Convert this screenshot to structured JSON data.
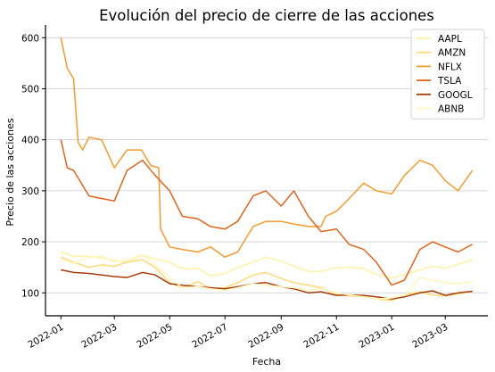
{
  "chart_data": {
    "type": "line",
    "title": "Evolución del precio de cierre de las acciones",
    "xlabel": "Fecha",
    "ylabel": "Precio de las acciones",
    "xlim": [
      "2021-12-15",
      "2023-04-17"
    ],
    "ylim": [
      55,
      625
    ],
    "x_ticks": [
      "2022-01-01",
      "2022-03-01",
      "2022-05-01",
      "2022-07-01",
      "2022-09-01",
      "2022-11-01",
      "2023-01-01",
      "2023-03-01"
    ],
    "x_tick_labels": [
      "2022-01",
      "2022-03",
      "2022-05",
      "2022-07",
      "2022-09",
      "2022-11",
      "2023-01",
      "2023-03"
    ],
    "y_ticks": [
      100,
      200,
      300,
      400,
      500,
      600
    ],
    "grid": "horizontal",
    "legend": "top-right",
    "series": [
      {
        "name": "AAPL",
        "color": "#fff1a8",
        "x": [
          "2022-01-01",
          "2022-01-15",
          "2022-02-01",
          "2022-02-15",
          "2022-03-01",
          "2022-03-15",
          "2022-04-01",
          "2022-04-15",
          "2022-05-01",
          "2022-05-15",
          "2022-06-01",
          "2022-06-15",
          "2022-07-01",
          "2022-07-15",
          "2022-08-01",
          "2022-08-15",
          "2022-09-01",
          "2022-09-15",
          "2022-10-01",
          "2022-10-15",
          "2022-11-01",
          "2022-11-15",
          "2022-12-01",
          "2022-12-15",
          "2023-01-01",
          "2023-01-15",
          "2023-02-01",
          "2023-02-15",
          "2023-03-01",
          "2023-03-15",
          "2023-03-31"
        ],
        "values": [
          180,
          172,
          172,
          168,
          164,
          160,
          174,
          166,
          160,
          147,
          148,
          133,
          138,
          150,
          160,
          170,
          162,
          152,
          142,
          142,
          150,
          150,
          148,
          136,
          129,
          136,
          145,
          152,
          148,
          156,
          165
        ]
      },
      {
        "name": "AMZN",
        "color": "#fed976",
        "x": [
          "2022-01-01",
          "2022-01-15",
          "2022-02-01",
          "2022-02-15",
          "2022-03-01",
          "2022-03-15",
          "2022-04-01",
          "2022-04-15",
          "2022-05-01",
          "2022-05-15",
          "2022-06-01",
          "2022-06-15",
          "2022-07-01",
          "2022-07-15",
          "2022-08-01",
          "2022-08-15",
          "2022-09-01",
          "2022-09-15",
          "2022-10-01",
          "2022-10-15",
          "2022-11-01",
          "2022-11-15",
          "2022-12-01",
          "2022-12-15",
          "2023-01-01",
          "2023-01-15",
          "2023-02-01",
          "2023-02-15",
          "2023-03-01",
          "2023-03-15",
          "2023-03-31"
        ],
        "values": [
          170,
          160,
          150,
          155,
          152,
          160,
          165,
          150,
          120,
          110,
          122,
          108,
          110,
          120,
          135,
          140,
          128,
          120,
          115,
          110,
          96,
          94,
          92,
          88,
          85,
          96,
          102,
          96,
          94,
          98,
          103
        ]
      },
      {
        "name": "NFLX",
        "color": "#f59a2f",
        "x": [
          "2022-01-01",
          "2022-01-08",
          "2022-01-15",
          "2022-01-20",
          "2022-01-25",
          "2022-02-01",
          "2022-02-15",
          "2022-03-01",
          "2022-03-15",
          "2022-03-31",
          "2022-04-10",
          "2022-04-19",
          "2022-04-21",
          "2022-05-01",
          "2022-05-15",
          "2022-06-01",
          "2022-06-15",
          "2022-07-01",
          "2022-07-15",
          "2022-08-01",
          "2022-08-15",
          "2022-09-01",
          "2022-09-15",
          "2022-10-01",
          "2022-10-15",
          "2022-10-20",
          "2022-11-01",
          "2022-11-15",
          "2022-12-01",
          "2022-12-15",
          "2023-01-01",
          "2023-01-15",
          "2023-02-01",
          "2023-02-15",
          "2023-03-01",
          "2023-03-15",
          "2023-03-31"
        ],
        "values": [
          600,
          540,
          520,
          395,
          380,
          405,
          400,
          345,
          380,
          380,
          350,
          345,
          225,
          190,
          185,
          180,
          190,
          170,
          180,
          230,
          240,
          240,
          235,
          230,
          230,
          250,
          260,
          285,
          315,
          300,
          294,
          330,
          360,
          350,
          320,
          300,
          340
        ]
      },
      {
        "name": "TSLA",
        "color": "#e0641e",
        "x": [
          "2022-01-01",
          "2022-01-08",
          "2022-01-15",
          "2022-02-01",
          "2022-02-15",
          "2022-03-01",
          "2022-03-15",
          "2022-04-01",
          "2022-04-15",
          "2022-05-01",
          "2022-05-15",
          "2022-06-01",
          "2022-06-15",
          "2022-07-01",
          "2022-07-15",
          "2022-08-01",
          "2022-08-15",
          "2022-09-01",
          "2022-09-15",
          "2022-10-01",
          "2022-10-15",
          "2022-11-01",
          "2022-11-15",
          "2022-12-01",
          "2022-12-15",
          "2023-01-01",
          "2023-01-15",
          "2023-02-01",
          "2023-02-15",
          "2023-03-01",
          "2023-03-15",
          "2023-03-31"
        ],
        "values": [
          400,
          345,
          340,
          290,
          285,
          280,
          340,
          360,
          330,
          300,
          250,
          245,
          230,
          225,
          240,
          290,
          300,
          270,
          300,
          250,
          220,
          225,
          195,
          185,
          160,
          115,
          125,
          185,
          200,
          190,
          180,
          195
        ]
      },
      {
        "name": "GOOGL",
        "color": "#a63b0b",
        "x": [
          "2022-01-01",
          "2022-01-15",
          "2022-02-01",
          "2022-02-15",
          "2022-03-01",
          "2022-03-15",
          "2022-04-01",
          "2022-04-15",
          "2022-05-01",
          "2022-05-15",
          "2022-06-01",
          "2022-06-15",
          "2022-07-01",
          "2022-07-15",
          "2022-08-01",
          "2022-08-15",
          "2022-09-01",
          "2022-09-15",
          "2022-10-01",
          "2022-10-15",
          "2022-11-01",
          "2022-11-15",
          "2022-12-01",
          "2022-12-15",
          "2023-01-01",
          "2023-01-15",
          "2023-02-01",
          "2023-02-15",
          "2023-03-01",
          "2023-03-15",
          "2023-03-31"
        ],
        "values": [
          145,
          140,
          138,
          135,
          132,
          130,
          140,
          135,
          118,
          115,
          112,
          110,
          108,
          112,
          118,
          120,
          112,
          108,
          100,
          102,
          95,
          96,
          95,
          92,
          88,
          92,
          100,
          104,
          95,
          100,
          103
        ]
      },
      {
        "name": "ABNB",
        "color": "#fff7c0",
        "x": [
          "2022-01-01",
          "2022-01-15",
          "2022-02-01",
          "2022-02-15",
          "2022-03-01",
          "2022-03-15",
          "2022-04-01",
          "2022-04-15",
          "2022-05-01",
          "2022-05-15",
          "2022-06-01",
          "2022-06-15",
          "2022-07-01",
          "2022-07-15",
          "2022-08-01",
          "2022-08-15",
          "2022-09-01",
          "2022-09-15",
          "2022-10-01",
          "2022-10-15",
          "2022-11-01",
          "2022-11-15",
          "2022-12-01",
          "2022-12-15",
          "2023-01-01",
          "2023-01-15",
          "2023-02-01",
          "2023-02-15",
          "2023-03-01",
          "2023-03-15",
          "2023-03-31"
        ],
        "values": [
          165,
          158,
          170,
          172,
          160,
          165,
          175,
          155,
          130,
          110,
          112,
          108,
          105,
          110,
          118,
          115,
          112,
          110,
          105,
          108,
          100,
          96,
          92,
          88,
          90,
          95,
          130,
          125,
          120,
          118,
          122
        ]
      }
    ]
  }
}
